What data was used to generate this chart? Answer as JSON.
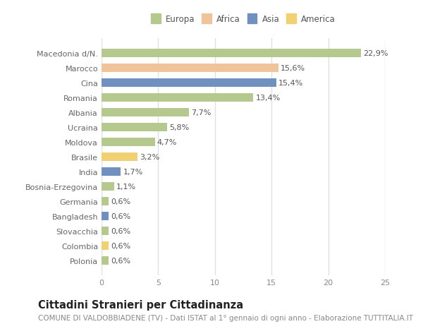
{
  "categories": [
    "Macedonia d/N.",
    "Marocco",
    "Cina",
    "Romania",
    "Albania",
    "Ucraina",
    "Moldova",
    "Brasile",
    "India",
    "Bosnia-Erzegovina",
    "Germania",
    "Bangladesh",
    "Slovacchia",
    "Colombia",
    "Polonia"
  ],
  "values": [
    22.9,
    15.6,
    15.4,
    13.4,
    7.7,
    5.8,
    4.7,
    3.2,
    1.7,
    1.1,
    0.6,
    0.6,
    0.6,
    0.6,
    0.6
  ],
  "labels": [
    "22,9%",
    "15,6%",
    "15,4%",
    "13,4%",
    "7,7%",
    "5,8%",
    "4,7%",
    "3,2%",
    "1,7%",
    "1,1%",
    "0,6%",
    "0,6%",
    "0,6%",
    "0,6%",
    "0,6%"
  ],
  "colors": [
    "#b5c98e",
    "#f0c49b",
    "#7090c0",
    "#b5c98e",
    "#b5c98e",
    "#b5c98e",
    "#b5c98e",
    "#f0d070",
    "#7090c0",
    "#b5c98e",
    "#b5c98e",
    "#7090c0",
    "#b5c98e",
    "#f0d070",
    "#b5c98e"
  ],
  "legend_labels": [
    "Europa",
    "Africa",
    "Asia",
    "America"
  ],
  "legend_colors": [
    "#b5c98e",
    "#f0c49b",
    "#7090c0",
    "#f0d070"
  ],
  "title": "Cittadini Stranieri per Cittadinanza",
  "subtitle": "COMUNE DI VALDOBBIADENE (TV) - Dati ISTAT al 1° gennaio di ogni anno - Elaborazione TUTTITALIA.IT",
  "xlim": [
    0,
    25
  ],
  "xticks": [
    0,
    5,
    10,
    15,
    20,
    25
  ],
  "bg_color": "#ffffff",
  "plot_bg_color": "#ffffff",
  "grid_color": "#e0e0e0",
  "bar_height": 0.55,
  "title_fontsize": 10.5,
  "subtitle_fontsize": 7.5,
  "label_fontsize": 8,
  "tick_fontsize": 8,
  "legend_fontsize": 8.5
}
